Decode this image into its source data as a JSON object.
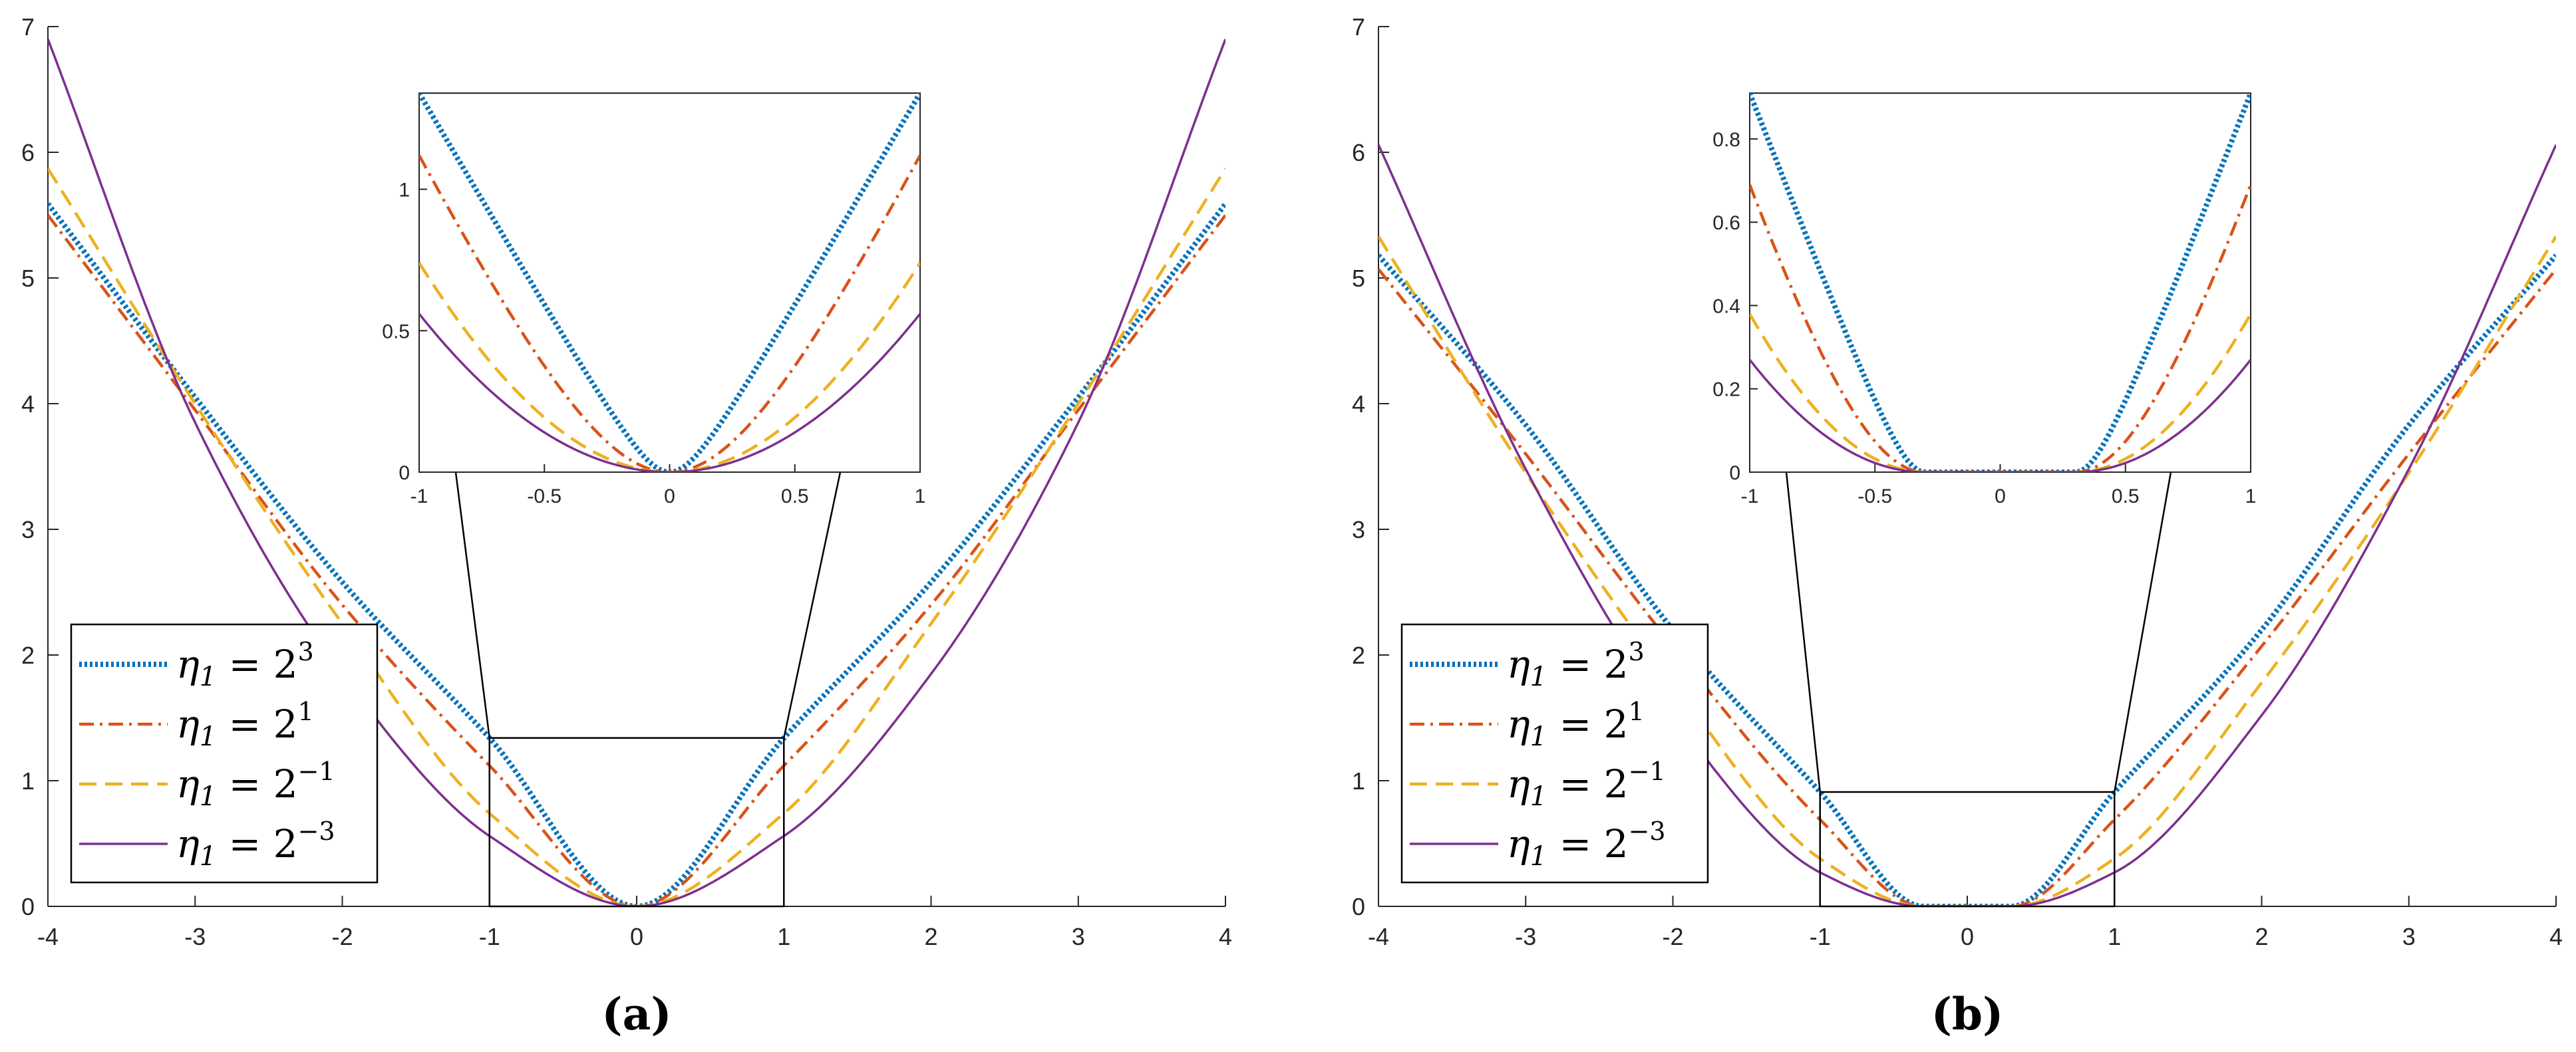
{
  "colors": {
    "series": [
      "#0072BD",
      "#D95319",
      "#EDB120",
      "#7E2F8E"
    ],
    "axis": "#262626",
    "grid": "none"
  },
  "chart_data": [
    {
      "type": "line",
      "caption": "(a)",
      "xlim": [
        -4,
        4
      ],
      "ylim": [
        0,
        7
      ],
      "x_ticks": [
        -4,
        -3,
        -2,
        -1,
        0,
        1,
        2,
        3,
        4
      ],
      "y_ticks": [
        0,
        1,
        2,
        3,
        4,
        5,
        6,
        7
      ],
      "grid": false,
      "legend_position": "bottom-left",
      "series": [
        {
          "name": "η1 = 2^3",
          "label_base": "η",
          "label_sub": "1",
          "label_eq": " = 2",
          "label_sup": "3",
          "eta": 8,
          "style": "dotted",
          "points": [
            [
              -4,
              5.59
            ],
            [
              -3,
              4.05
            ],
            [
              -2,
              2.58
            ],
            [
              -1,
              1.34
            ],
            [
              0,
              0
            ],
            [
              1,
              1.34
            ],
            [
              2,
              2.58
            ],
            [
              3,
              4.05
            ],
            [
              4,
              5.59
            ]
          ]
        },
        {
          "name": "η1 = 2^1",
          "label_base": "η",
          "label_sub": "1",
          "label_eq": " = 2",
          "label_sup": "1",
          "eta": 2,
          "style": "dashdot",
          "points": [
            [
              -4,
              5.5
            ],
            [
              -3,
              3.95
            ],
            [
              -2,
              2.4
            ],
            [
              -1,
              1.12
            ],
            [
              0,
              0
            ],
            [
              1,
              1.12
            ],
            [
              2,
              2.4
            ],
            [
              3,
              3.95
            ],
            [
              4,
              5.5
            ]
          ]
        },
        {
          "name": "η1 = 2^-1",
          "label_base": "η",
          "label_sub": "1",
          "label_eq": " = 2",
          "label_sup": "−1",
          "eta": 0.5,
          "style": "dashed",
          "points": [
            [
              -4,
              5.87
            ],
            [
              -3,
              4.0
            ],
            [
              -2,
              2.25
            ],
            [
              -1,
              0.74
            ],
            [
              0,
              0
            ],
            [
              1,
              0.74
            ],
            [
              2,
              2.25
            ],
            [
              3,
              4.0
            ],
            [
              4,
              5.87
            ]
          ]
        },
        {
          "name": "η1 = 2^-3",
          "label_base": "η",
          "label_sub": "1",
          "label_eq": " = 2",
          "label_sup": "−3",
          "eta": 0.125,
          "style": "solid",
          "points": [
            [
              -4,
              6.9
            ],
            [
              -3,
              3.85
            ],
            [
              -2,
              1.85
            ],
            [
              -1,
              0.56
            ],
            [
              0,
              0
            ],
            [
              1,
              0.56
            ],
            [
              2,
              1.85
            ],
            [
              3,
              3.85
            ],
            [
              4,
              6.9
            ]
          ]
        }
      ],
      "zoom_box": {
        "x": [
          -1,
          1
        ],
        "y": [
          0,
          1.34
        ]
      },
      "inset": {
        "xlim": [
          -1,
          1
        ],
        "ylim": [
          0,
          1.34
        ],
        "x_ticks": [
          -1,
          -0.5,
          0,
          0.5,
          1
        ],
        "x_tick_labels": [
          "-1",
          "-0.5",
          "0",
          "0.5",
          "1"
        ],
        "y_ticks": [
          0,
          0.5,
          1
        ],
        "y_tick_labels": [
          "0",
          "0.5",
          "1"
        ]
      }
    },
    {
      "type": "line",
      "caption": "(b)",
      "xlim": [
        -4,
        4
      ],
      "ylim": [
        0,
        7
      ],
      "x_ticks": [
        -4,
        -3,
        -2,
        -1,
        0,
        1,
        2,
        3,
        4
      ],
      "y_ticks": [
        0,
        1,
        2,
        3,
        4,
        5,
        6,
        7
      ],
      "grid": false,
      "legend_position": "bottom-left",
      "deadzone": 0.3,
      "series": [
        {
          "name": "η1 = 2^3",
          "label_base": "η",
          "label_sub": "1",
          "label_eq": " = 2",
          "label_sup": "3",
          "eta": 8,
          "style": "dotted",
          "points": [
            [
              -4,
              5.18
            ],
            [
              -3,
              3.83
            ],
            [
              -2,
              2.2
            ],
            [
              -1,
              0.91
            ],
            [
              -0.3,
              0
            ],
            [
              0,
              0
            ],
            [
              0.3,
              0
            ],
            [
              1,
              0.91
            ],
            [
              2,
              2.2
            ],
            [
              3,
              3.83
            ],
            [
              4,
              5.18
            ]
          ]
        },
        {
          "name": "η1 = 2^1",
          "label_base": "η",
          "label_sub": "1",
          "label_eq": " = 2",
          "label_sup": "1",
          "eta": 2,
          "style": "dashdot",
          "points": [
            [
              -4,
              5.07
            ],
            [
              -3,
              3.6
            ],
            [
              -2,
              2.07
            ],
            [
              -1,
              0.69
            ],
            [
              -0.3,
              0
            ],
            [
              0,
              0
            ],
            [
              0.3,
              0
            ],
            [
              1,
              0.69
            ],
            [
              2,
              2.07
            ],
            [
              3,
              3.6
            ],
            [
              4,
              5.07
            ]
          ]
        },
        {
          "name": "η1 = 2^-1",
          "label_base": "η",
          "label_sub": "1",
          "label_eq": " = 2",
          "label_sup": "−1",
          "eta": 0.5,
          "style": "dashed",
          "points": [
            [
              -4,
              5.33
            ],
            [
              -3,
              3.45
            ],
            [
              -2,
              1.78
            ],
            [
              -1,
              0.38
            ],
            [
              -0.3,
              0
            ],
            [
              0,
              0
            ],
            [
              0.3,
              0
            ],
            [
              1,
              0.38
            ],
            [
              2,
              1.78
            ],
            [
              3,
              3.45
            ],
            [
              4,
              5.33
            ]
          ]
        },
        {
          "name": "η1 = 2^-3",
          "label_base": "η",
          "label_sub": "1",
          "label_eq": " = 2",
          "label_sup": "−3",
          "eta": 0.125,
          "style": "solid",
          "points": [
            [
              -4,
              6.06
            ],
            [
              -3,
              3.48
            ],
            [
              -2,
              1.52
            ],
            [
              -1,
              0.27
            ],
            [
              -0.3,
              0
            ],
            [
              0,
              0
            ],
            [
              0.3,
              0
            ],
            [
              1,
              0.27
            ],
            [
              2,
              1.52
            ],
            [
              3,
              3.48
            ],
            [
              4,
              6.06
            ]
          ]
        }
      ],
      "zoom_box": {
        "x": [
          -1,
          1
        ],
        "y": [
          0,
          0.91
        ]
      },
      "inset": {
        "xlim": [
          -1,
          1
        ],
        "ylim": [
          0,
          0.91
        ],
        "x_ticks": [
          -1,
          -0.5,
          0,
          0.5,
          1
        ],
        "x_tick_labels": [
          "-1",
          "-0.5",
          "0",
          "0.5",
          "1"
        ],
        "y_ticks": [
          0,
          0.2,
          0.4,
          0.6,
          0.8
        ],
        "y_tick_labels": [
          "0",
          "0.2",
          "0.4",
          "0.6",
          "0.8"
        ]
      }
    }
  ]
}
